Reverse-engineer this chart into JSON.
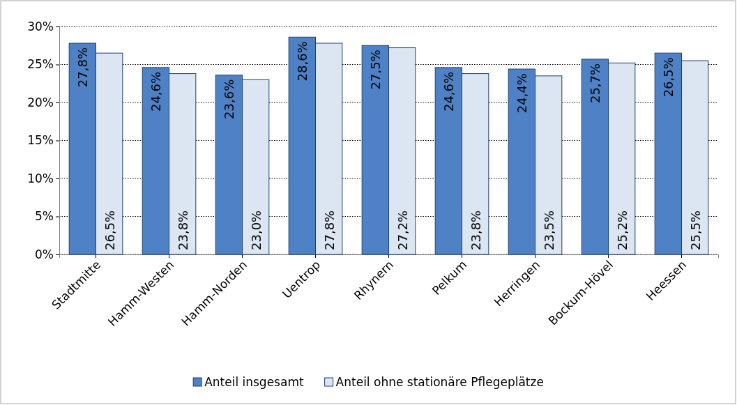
{
  "chart_data": {
    "type": "bar",
    "categories": [
      "Stadtmitte",
      "Hamm-Westen",
      "Hamm-Norden",
      "Uentrop",
      "Rhynern",
      "Pelkum",
      "Herringen",
      "Bockum-Hövel",
      "Heessen"
    ],
    "series": [
      {
        "name": "Anteil insgesamt",
        "color": "#4f81c6",
        "values": [
          27.8,
          24.6,
          23.6,
          28.6,
          27.5,
          24.6,
          24.4,
          25.7,
          26.5
        ],
        "value_labels": [
          "27,8%",
          "24,6%",
          "23,6%",
          "28,6%",
          "27,5%",
          "24,6%",
          "24,4%",
          "25,7%",
          "26,5%"
        ]
      },
      {
        "name": "Anteil ohne stationäre Pflegeplätze",
        "color": "#dce6f2",
        "values": [
          26.5,
          23.8,
          23.0,
          27.8,
          27.2,
          23.8,
          23.5,
          25.2,
          25.5
        ],
        "value_labels": [
          "26,5%",
          "23,8%",
          "23,0%",
          "27,8%",
          "27,2%",
          "23,8%",
          "23,5%",
          "25,2%",
          "25,5%"
        ]
      }
    ],
    "ylim": [
      0,
      30
    ],
    "yticks": [
      {
        "value": 0,
        "label": "0%"
      },
      {
        "value": 5,
        "label": "5%"
      },
      {
        "value": 10,
        "label": "10%"
      },
      {
        "value": 15,
        "label": "15%"
      },
      {
        "value": 20,
        "label": "20%"
      },
      {
        "value": 25,
        "label": "25%"
      },
      {
        "value": 30,
        "label": "30%"
      }
    ],
    "grid": "y",
    "legend": "bottom"
  }
}
